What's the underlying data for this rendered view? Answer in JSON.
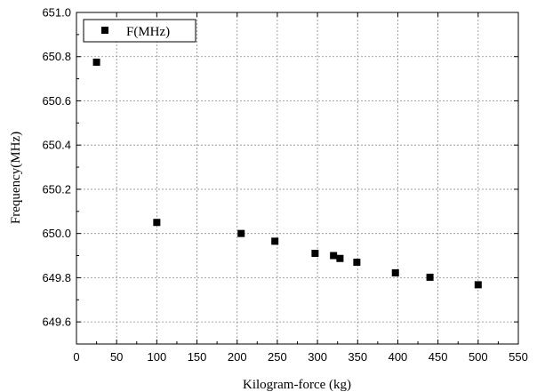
{
  "chart_data": {
    "type": "scatter",
    "xlabel": "Kilogram-force (kg)",
    "ylabel": "Frequency(MHz)",
    "xlim": [
      0,
      550
    ],
    "ylim": [
      649.5,
      651.0
    ],
    "x_ticks": [
      "0",
      "50",
      "100",
      "150",
      "200",
      "250",
      "300",
      "350",
      "400",
      "450",
      "500",
      "550"
    ],
    "y_ticks": [
      "649.6",
      "649.8",
      "650.0",
      "650.2",
      "650.4",
      "650.6",
      "650.8",
      "651.0"
    ],
    "grid": true,
    "legend_position": "top-left",
    "series": [
      {
        "name": "F(MHz)",
        "marker": "square",
        "color": "#000000",
        "x": [
          25,
          100,
          205,
          247,
          297,
          320,
          328,
          349,
          397,
          440,
          500
        ],
        "y": [
          650.775,
          650.05,
          650.0,
          649.965,
          649.91,
          649.9,
          649.887,
          649.87,
          649.822,
          649.802,
          649.768
        ]
      }
    ]
  }
}
